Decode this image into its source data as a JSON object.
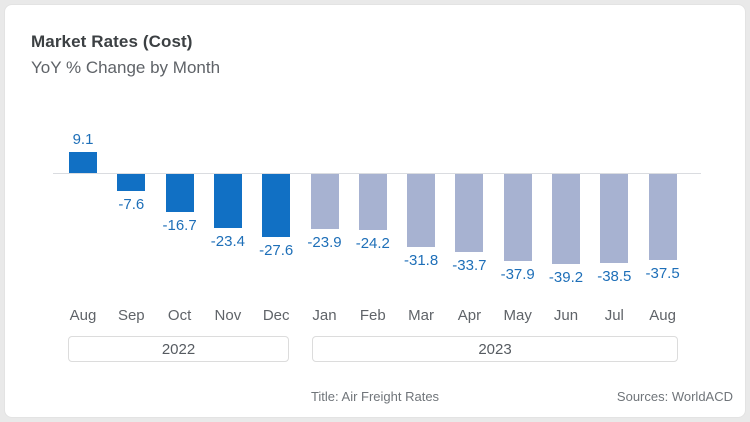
{
  "header": {
    "title": "Market Rates (Cost)",
    "subtitle": "YoY % Change by Month"
  },
  "footer": {
    "caption": "Title: Air Freight Rates",
    "sources": "Sources: WorldACD"
  },
  "chart_data": {
    "type": "bar",
    "title": "Market Rates (Cost)",
    "subtitle": "YoY % Change by Month",
    "categories": [
      "Aug",
      "Sep",
      "Oct",
      "Nov",
      "Dec",
      "Jan",
      "Feb",
      "Mar",
      "Apr",
      "May",
      "Jun",
      "Jul",
      "Aug"
    ],
    "values": [
      9.1,
      -7.6,
      -16.7,
      -23.4,
      -27.6,
      -23.9,
      -24.2,
      -31.8,
      -33.7,
      -37.9,
      -39.2,
      -38.5,
      -37.5
    ],
    "groups": [
      {
        "label": "2022",
        "start_index": 0,
        "end_index": 4
      },
      {
        "label": "2023",
        "start_index": 5,
        "end_index": 12
      }
    ],
    "colors": {
      "bar_2022": "#1170c4",
      "bar_2023": "#a7b2d1",
      "value_label": "#1e6fb8",
      "axis_line": "#dadce0",
      "month_label": "#5f6368"
    },
    "ylim": [
      -45,
      15
    ],
    "grid": false,
    "legend": "none",
    "data_labels": true,
    "baseline": 0
  }
}
